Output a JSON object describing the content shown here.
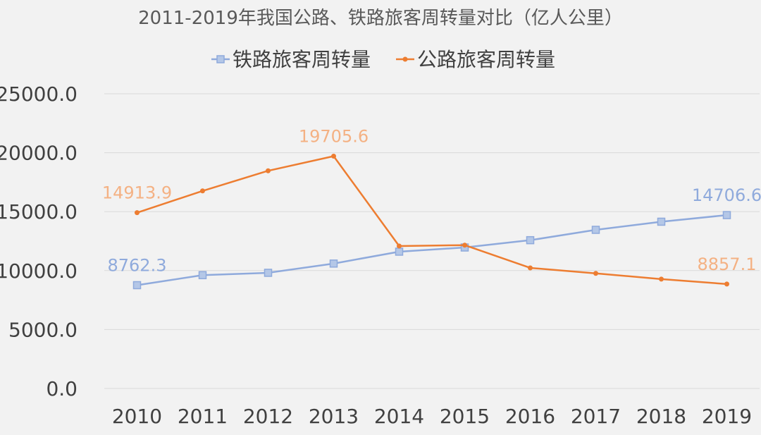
{
  "chart_data": {
    "type": "line",
    "title": "2011-2019年我国公路、铁路旅客周转量对比（亿人公里）",
    "xlabel": "",
    "ylabel": "",
    "categories": [
      "2010",
      "2011",
      "2012",
      "2013",
      "2014",
      "2015",
      "2016",
      "2017",
      "2018",
      "2019"
    ],
    "ylim": [
      0,
      25000
    ],
    "yticks": [
      "0.0",
      "5000.0",
      "10000.0",
      "15000.0",
      "20000.0",
      "25000.0"
    ],
    "grid": true,
    "legend_position": "top",
    "series": [
      {
        "name": "铁路旅客周转量",
        "color": "#8faadc",
        "marker": "square",
        "values": [
          8762.3,
          9612,
          9812,
          10596,
          11605,
          11960,
          12579,
          13457,
          14147,
          14706.6
        ],
        "labels": [
          {
            "index": 0,
            "text": "8762.3"
          },
          {
            "index": 9,
            "text": "14706.6"
          }
        ]
      },
      {
        "name": "公路旅客周转量",
        "color": "#ed7d31",
        "label_color": "#f4b183",
        "marker": "circle",
        "values": [
          14913.9,
          16760,
          18468,
          19705.6,
          12084,
          12159,
          10229,
          9765,
          9280,
          8857.1
        ],
        "labels": [
          {
            "index": 0,
            "text": "14913.9"
          },
          {
            "index": 3,
            "text": "19705.6"
          },
          {
            "index": 9,
            "text": "8857.1"
          }
        ]
      }
    ]
  }
}
